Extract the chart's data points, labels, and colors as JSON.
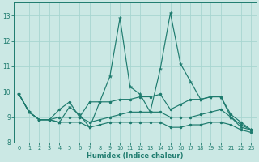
{
  "xlabel": "Humidex (Indice chaleur)",
  "background_color": "#cbe8e4",
  "grid_color": "#a8d5d0",
  "line_color": "#1e7b6e",
  "xlim": [
    -0.5,
    23.5
  ],
  "ylim": [
    8.0,
    13.5
  ],
  "yticks": [
    8,
    9,
    10,
    11,
    12,
    13
  ],
  "xticks": [
    0,
    1,
    2,
    3,
    4,
    5,
    6,
    7,
    8,
    9,
    10,
    11,
    12,
    13,
    14,
    15,
    16,
    17,
    18,
    19,
    20,
    21,
    22,
    23
  ],
  "line_main": [
    9.9,
    9.2,
    8.9,
    8.9,
    8.8,
    9.4,
    9.1,
    8.6,
    9.6,
    10.6,
    12.9,
    10.2,
    9.9,
    9.2,
    10.9,
    13.1,
    11.1,
    10.4,
    9.7,
    9.8,
    9.8,
    9.0,
    8.6,
    8.5
  ],
  "line_a": [
    9.9,
    9.2,
    8.9,
    8.9,
    9.3,
    9.6,
    9.0,
    9.6,
    9.6,
    9.6,
    9.7,
    9.7,
    9.8,
    9.8,
    9.9,
    9.3,
    9.5,
    9.7,
    9.7,
    9.8,
    9.8,
    9.1,
    8.8,
    8.5
  ],
  "line_b": [
    9.9,
    9.2,
    8.9,
    8.9,
    9.0,
    9.0,
    9.0,
    8.8,
    8.9,
    9.0,
    9.1,
    9.2,
    9.2,
    9.2,
    9.2,
    9.0,
    9.0,
    9.0,
    9.1,
    9.2,
    9.3,
    9.0,
    8.7,
    8.5
  ],
  "line_c": [
    9.9,
    9.2,
    8.9,
    8.9,
    8.8,
    8.8,
    8.8,
    8.6,
    8.7,
    8.8,
    8.8,
    8.8,
    8.8,
    8.8,
    8.8,
    8.6,
    8.6,
    8.7,
    8.7,
    8.8,
    8.8,
    8.7,
    8.5,
    8.4
  ]
}
